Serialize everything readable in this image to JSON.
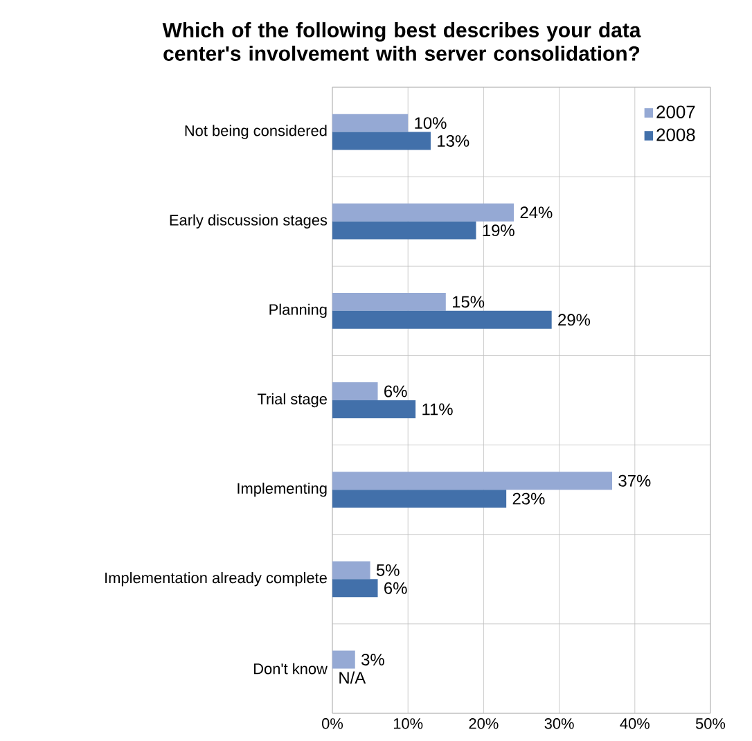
{
  "chart_data": {
    "type": "bar",
    "orientation": "horizontal",
    "title": "Which of the following best describes your data center's involvement with server consolidation?",
    "categories": [
      "Not being considered",
      "Early discussion stages",
      "Planning",
      "Trial stage",
      "Implementing",
      "Implementation already complete",
      "Don't know"
    ],
    "series": [
      {
        "name": "2007",
        "color": "#95a9d4",
        "values": [
          10,
          24,
          15,
          6,
          37,
          5,
          3
        ],
        "value_labels": [
          "10%",
          "24%",
          "15%",
          "6%",
          "37%",
          "5%",
          "3%"
        ]
      },
      {
        "name": "2008",
        "color": "#4270aa",
        "values": [
          13,
          19,
          29,
          11,
          23,
          6,
          null
        ],
        "value_labels": [
          "13%",
          "19%",
          "29%",
          "11%",
          "23%",
          "6%",
          "N/A"
        ]
      }
    ],
    "xlim": [
      0,
      50
    ],
    "xticks": [
      {
        "value": 0,
        "label": "0%"
      },
      {
        "value": 10,
        "label": "10%"
      },
      {
        "value": 20,
        "label": "20%"
      },
      {
        "value": 30,
        "label": "30%"
      },
      {
        "value": 40,
        "label": "40%"
      },
      {
        "value": 50,
        "label": "50%"
      }
    ],
    "grid": true,
    "legend": "top right"
  }
}
